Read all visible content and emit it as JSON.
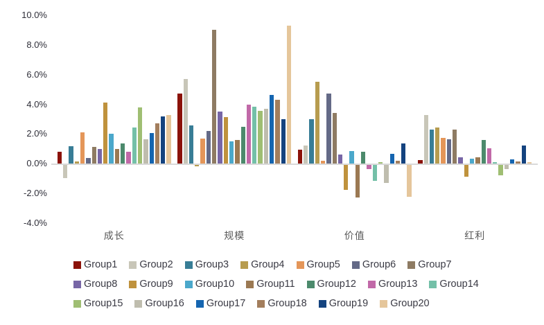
{
  "chart_data": {
    "type": "bar",
    "title": "",
    "categories": [
      "成长",
      "规模",
      "价值",
      "红利"
    ],
    "series": [
      {
        "name": "Group1",
        "color": "#8b1209",
        "values": [
          0.8,
          4.75,
          0.95,
          0.25
        ]
      },
      {
        "name": "Group2",
        "color": "#c8c6b8",
        "values": [
          -0.85,
          5.7,
          1.25,
          3.3
        ]
      },
      {
        "name": "Group3",
        "color": "#387d96",
        "values": [
          1.2,
          2.6,
          3.0,
          2.3
        ]
      },
      {
        "name": "Group4",
        "color": "#b79c4f",
        "values": [
          0.15,
          -0.1,
          5.5,
          2.45
        ]
      },
      {
        "name": "Group5",
        "color": "#e49659",
        "values": [
          2.1,
          1.7,
          0.2,
          1.75
        ]
      },
      {
        "name": "Group6",
        "color": "#646a87",
        "values": [
          0.4,
          2.2,
          4.75,
          1.65
        ]
      },
      {
        "name": "Group7",
        "color": "#8e7b63",
        "values": [
          1.15,
          9.0,
          3.4,
          2.3
        ]
      },
      {
        "name": "Group8",
        "color": "#7766a6",
        "values": [
          1.0,
          3.5,
          0.6,
          0.45
        ]
      },
      {
        "name": "Group9",
        "color": "#bf923d",
        "values": [
          4.1,
          3.15,
          -1.65,
          -0.8
        ]
      },
      {
        "name": "Group10",
        "color": "#4ba8cb",
        "values": [
          2.0,
          1.5,
          0.85,
          0.35
        ]
      },
      {
        "name": "Group11",
        "color": "#9b7953",
        "values": [
          1.0,
          1.6,
          -2.2,
          0.45
        ]
      },
      {
        "name": "Group12",
        "color": "#4c8a6c",
        "values": [
          1.35,
          2.5,
          0.8,
          1.6
        ]
      },
      {
        "name": "Group13",
        "color": "#c169a8",
        "values": [
          0.8,
          4.0,
          -0.25,
          1.05
        ]
      },
      {
        "name": "Group14",
        "color": "#74c0a8",
        "values": [
          2.45,
          3.85,
          -1.05,
          0.1
        ]
      },
      {
        "name": "Group15",
        "color": "#9fbe73",
        "values": [
          3.8,
          3.55,
          0.1,
          -0.7
        ]
      },
      {
        "name": "Group16",
        "color": "#bfbdae",
        "values": [
          1.65,
          3.7,
          -1.2,
          -0.25
        ]
      },
      {
        "name": "Group17",
        "color": "#1565b0",
        "values": [
          2.05,
          4.65,
          0.65,
          0.3
        ]
      },
      {
        "name": "Group18",
        "color": "#a37e5d",
        "values": [
          2.7,
          4.3,
          0.2,
          0.15
        ]
      },
      {
        "name": "Group19",
        "color": "#14437f",
        "values": [
          3.2,
          3.0,
          1.35,
          1.25
        ]
      },
      {
        "name": "Group20",
        "color": "#e5c69b",
        "values": [
          3.3,
          9.3,
          -2.15,
          0.1
        ]
      }
    ],
    "y_axis": {
      "tick_labels": [
        "10.0%",
        "8.0%",
        "6.0%",
        "4.0%",
        "2.0%",
        "0.0%",
        "-2.0%",
        "-4.0%"
      ],
      "tick_values": [
        10,
        8,
        6,
        4,
        2,
        0,
        -2,
        -4
      ],
      "max": 10,
      "min": -4,
      "step": 2
    },
    "grid": false,
    "legend_position": "bottom",
    "legend_rows": [
      7,
      7,
      6
    ]
  }
}
